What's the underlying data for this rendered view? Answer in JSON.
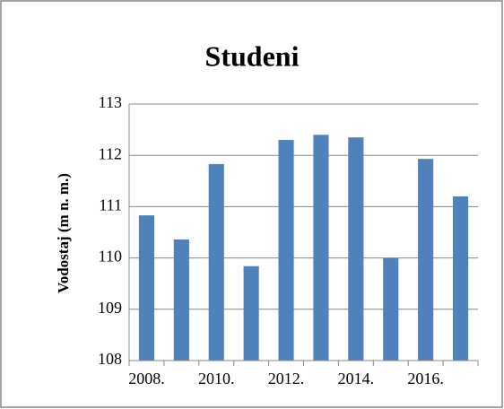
{
  "chart_data": {
    "type": "bar",
    "title": "Studeni",
    "y_label": "Vodostaj (m n. m.)",
    "categories": [
      "2008.",
      null,
      "2010.",
      null,
      "2012.",
      null,
      "2014.",
      null,
      "2016.",
      null
    ],
    "values": [
      110.83,
      110.36,
      111.83,
      109.84,
      112.3,
      112.4,
      112.35,
      110.0,
      111.93,
      111.2
    ],
    "color": "#4f81bd",
    "ylim": [
      108,
      113
    ],
    "yticks": [
      108,
      109,
      110,
      111,
      112,
      113
    ],
    "grid": true
  }
}
